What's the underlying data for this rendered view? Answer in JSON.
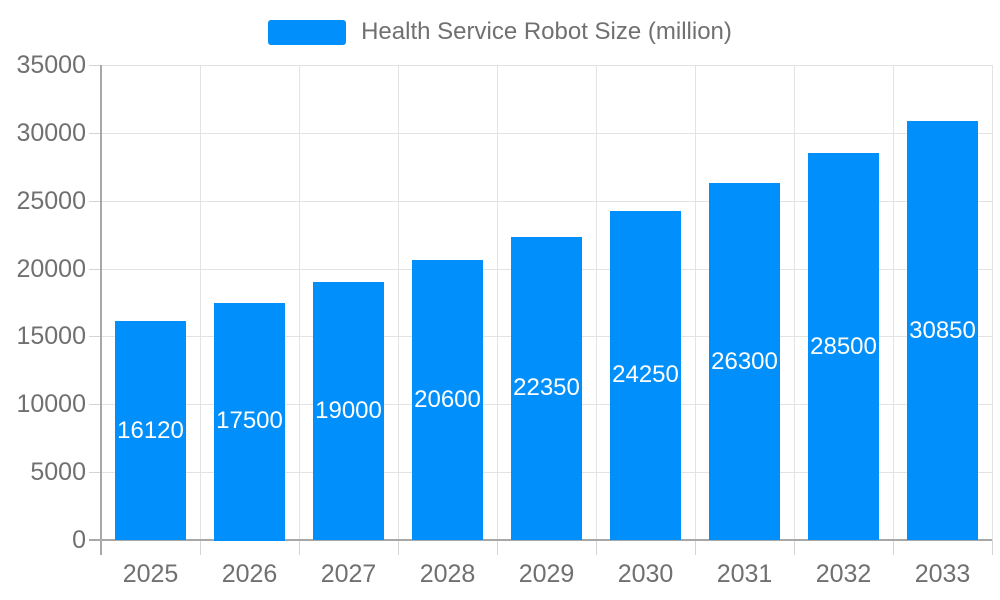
{
  "legend": {
    "label": "Health Service Robot Size (million)"
  },
  "chart_data": {
    "type": "bar",
    "title": "Health Service Robot Size (million)",
    "categories": [
      "2025",
      "2026",
      "2027",
      "2028",
      "2029",
      "2030",
      "2031",
      "2032",
      "2033"
    ],
    "values": [
      16120,
      17500,
      19000,
      20600,
      22350,
      24250,
      26300,
      28500,
      30850
    ],
    "value_labels": [
      "16120",
      "17500",
      "19000",
      "20600",
      "22350",
      "24250",
      "26300",
      "28500",
      "30850"
    ],
    "xlabel": "",
    "ylabel": "",
    "ylim": [
      0,
      35000
    ],
    "yticks": [
      0,
      5000,
      10000,
      15000,
      20000,
      25000,
      30000,
      35000
    ],
    "grid": true,
    "legend_position": "top",
    "colors": {
      "bar": "#008FFB",
      "value_label": "#FFFFFF",
      "axis_label": "#707070",
      "grid_line": "#E3E3E3",
      "axis_line": "#A8A8A8",
      "tick_mark": "#D4D4D4"
    }
  }
}
